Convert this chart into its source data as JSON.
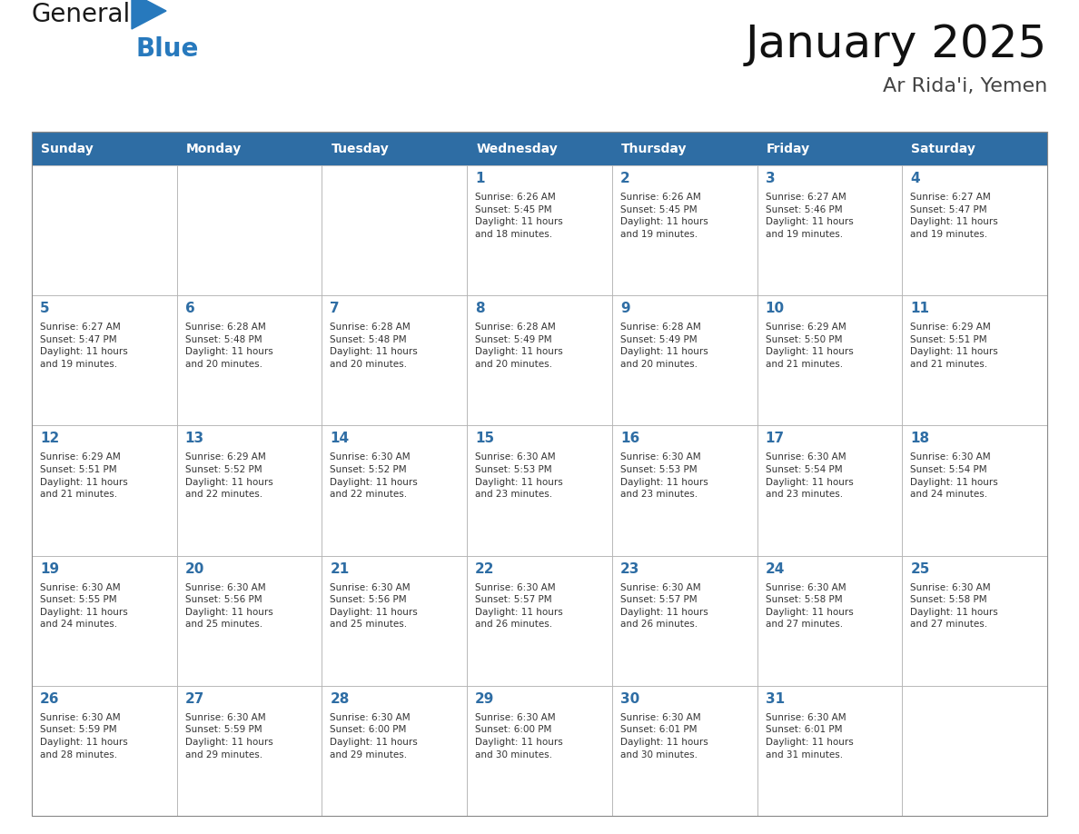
{
  "title": "January 2025",
  "subtitle": "Ar Rida'i, Yemen",
  "header_color": "#2E6DA4",
  "header_text_color": "#FFFFFF",
  "cell_bg_color": "#FFFFFF",
  "cell_border_color": "#AAAAAA",
  "day_number_color": "#2E6DA4",
  "cell_text_color": "#333333",
  "days_of_week": [
    "Sunday",
    "Monday",
    "Tuesday",
    "Wednesday",
    "Thursday",
    "Friday",
    "Saturday"
  ],
  "logo_general_color": "#1a1a1a",
  "logo_blue_color": "#2779BD",
  "title_color": "#111111",
  "subtitle_color": "#444444",
  "calendar_data": [
    [
      {
        "day": null,
        "info": null
      },
      {
        "day": null,
        "info": null
      },
      {
        "day": null,
        "info": null
      },
      {
        "day": 1,
        "info": "Sunrise: 6:26 AM\nSunset: 5:45 PM\nDaylight: 11 hours\nand 18 minutes."
      },
      {
        "day": 2,
        "info": "Sunrise: 6:26 AM\nSunset: 5:45 PM\nDaylight: 11 hours\nand 19 minutes."
      },
      {
        "day": 3,
        "info": "Sunrise: 6:27 AM\nSunset: 5:46 PM\nDaylight: 11 hours\nand 19 minutes."
      },
      {
        "day": 4,
        "info": "Sunrise: 6:27 AM\nSunset: 5:47 PM\nDaylight: 11 hours\nand 19 minutes."
      }
    ],
    [
      {
        "day": 5,
        "info": "Sunrise: 6:27 AM\nSunset: 5:47 PM\nDaylight: 11 hours\nand 19 minutes."
      },
      {
        "day": 6,
        "info": "Sunrise: 6:28 AM\nSunset: 5:48 PM\nDaylight: 11 hours\nand 20 minutes."
      },
      {
        "day": 7,
        "info": "Sunrise: 6:28 AM\nSunset: 5:48 PM\nDaylight: 11 hours\nand 20 minutes."
      },
      {
        "day": 8,
        "info": "Sunrise: 6:28 AM\nSunset: 5:49 PM\nDaylight: 11 hours\nand 20 minutes."
      },
      {
        "day": 9,
        "info": "Sunrise: 6:28 AM\nSunset: 5:49 PM\nDaylight: 11 hours\nand 20 minutes."
      },
      {
        "day": 10,
        "info": "Sunrise: 6:29 AM\nSunset: 5:50 PM\nDaylight: 11 hours\nand 21 minutes."
      },
      {
        "day": 11,
        "info": "Sunrise: 6:29 AM\nSunset: 5:51 PM\nDaylight: 11 hours\nand 21 minutes."
      }
    ],
    [
      {
        "day": 12,
        "info": "Sunrise: 6:29 AM\nSunset: 5:51 PM\nDaylight: 11 hours\nand 21 minutes."
      },
      {
        "day": 13,
        "info": "Sunrise: 6:29 AM\nSunset: 5:52 PM\nDaylight: 11 hours\nand 22 minutes."
      },
      {
        "day": 14,
        "info": "Sunrise: 6:30 AM\nSunset: 5:52 PM\nDaylight: 11 hours\nand 22 minutes."
      },
      {
        "day": 15,
        "info": "Sunrise: 6:30 AM\nSunset: 5:53 PM\nDaylight: 11 hours\nand 23 minutes."
      },
      {
        "day": 16,
        "info": "Sunrise: 6:30 AM\nSunset: 5:53 PM\nDaylight: 11 hours\nand 23 minutes."
      },
      {
        "day": 17,
        "info": "Sunrise: 6:30 AM\nSunset: 5:54 PM\nDaylight: 11 hours\nand 23 minutes."
      },
      {
        "day": 18,
        "info": "Sunrise: 6:30 AM\nSunset: 5:54 PM\nDaylight: 11 hours\nand 24 minutes."
      }
    ],
    [
      {
        "day": 19,
        "info": "Sunrise: 6:30 AM\nSunset: 5:55 PM\nDaylight: 11 hours\nand 24 minutes."
      },
      {
        "day": 20,
        "info": "Sunrise: 6:30 AM\nSunset: 5:56 PM\nDaylight: 11 hours\nand 25 minutes."
      },
      {
        "day": 21,
        "info": "Sunrise: 6:30 AM\nSunset: 5:56 PM\nDaylight: 11 hours\nand 25 minutes."
      },
      {
        "day": 22,
        "info": "Sunrise: 6:30 AM\nSunset: 5:57 PM\nDaylight: 11 hours\nand 26 minutes."
      },
      {
        "day": 23,
        "info": "Sunrise: 6:30 AM\nSunset: 5:57 PM\nDaylight: 11 hours\nand 26 minutes."
      },
      {
        "day": 24,
        "info": "Sunrise: 6:30 AM\nSunset: 5:58 PM\nDaylight: 11 hours\nand 27 minutes."
      },
      {
        "day": 25,
        "info": "Sunrise: 6:30 AM\nSunset: 5:58 PM\nDaylight: 11 hours\nand 27 minutes."
      }
    ],
    [
      {
        "day": 26,
        "info": "Sunrise: 6:30 AM\nSunset: 5:59 PM\nDaylight: 11 hours\nand 28 minutes."
      },
      {
        "day": 27,
        "info": "Sunrise: 6:30 AM\nSunset: 5:59 PM\nDaylight: 11 hours\nand 29 minutes."
      },
      {
        "day": 28,
        "info": "Sunrise: 6:30 AM\nSunset: 6:00 PM\nDaylight: 11 hours\nand 29 minutes."
      },
      {
        "day": 29,
        "info": "Sunrise: 6:30 AM\nSunset: 6:00 PM\nDaylight: 11 hours\nand 30 minutes."
      },
      {
        "day": 30,
        "info": "Sunrise: 6:30 AM\nSunset: 6:01 PM\nDaylight: 11 hours\nand 30 minutes."
      },
      {
        "day": 31,
        "info": "Sunrise: 6:30 AM\nSunset: 6:01 PM\nDaylight: 11 hours\nand 31 minutes."
      },
      {
        "day": null,
        "info": null
      }
    ]
  ],
  "fig_width": 11.88,
  "fig_height": 9.18,
  "dpi": 100
}
